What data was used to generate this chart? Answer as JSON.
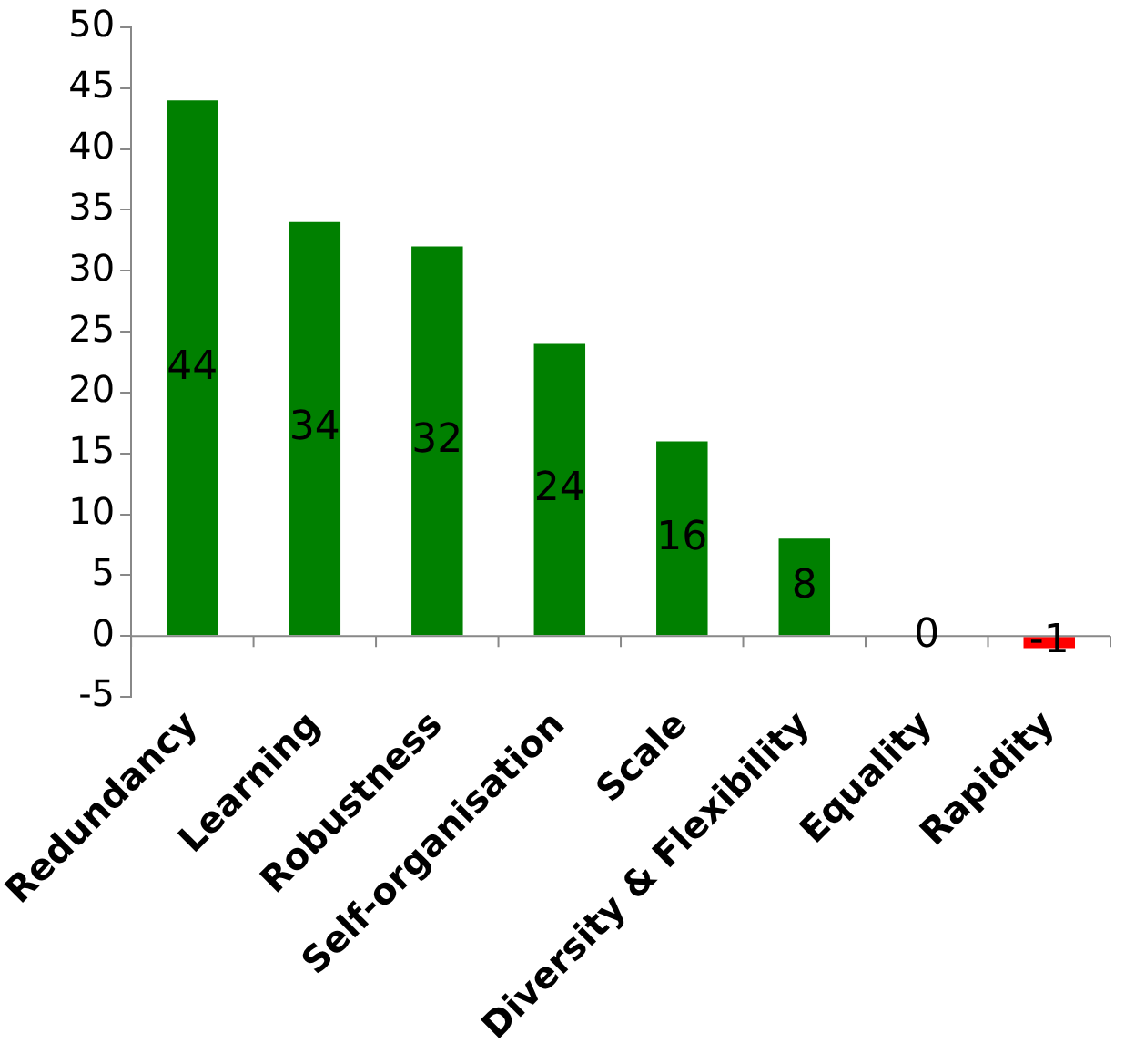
{
  "chart_data": {
    "type": "bar",
    "categories": [
      "Redundancy",
      "Learning",
      "Robustness",
      "Self-organisation",
      "Scale",
      "Diversity & Flexibility",
      "Equality",
      "Rapidity"
    ],
    "values": [
      44,
      34,
      32,
      24,
      16,
      8,
      0,
      -1
    ],
    "colors": [
      "#008000",
      "#008000",
      "#008000",
      "#008000",
      "#008000",
      "#008000",
      "#008000",
      "#ff0000"
    ],
    "ylim": [
      -5,
      50
    ],
    "yticks": [
      -5,
      0,
      5,
      10,
      15,
      20,
      25,
      30,
      35,
      40,
      45,
      50
    ],
    "data_labels": true
  }
}
